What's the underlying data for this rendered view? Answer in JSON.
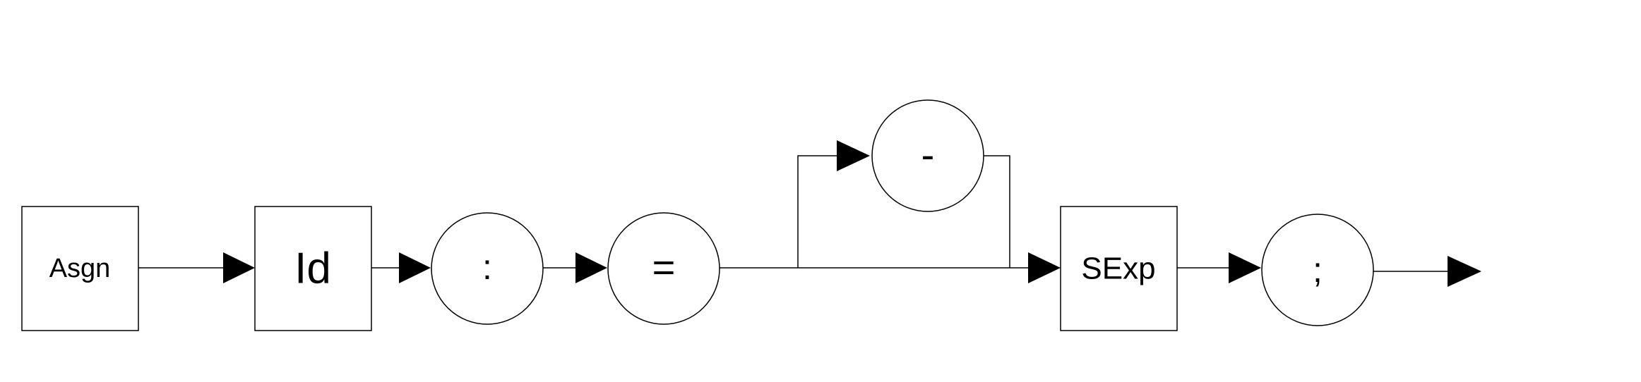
{
  "diagram": {
    "nodes": {
      "asgn": {
        "label": "Asgn",
        "shape": "box"
      },
      "id": {
        "label": "Id",
        "shape": "box"
      },
      "colon": {
        "label": ":",
        "shape": "circle"
      },
      "equals": {
        "label": "=",
        "shape": "circle"
      },
      "minus": {
        "label": "-",
        "shape": "circle"
      },
      "sexp": {
        "label": "SExp",
        "shape": "box"
      },
      "semicolon": {
        "label": ";",
        "shape": "circle"
      }
    },
    "edges": [
      {
        "from": "asgn",
        "to": "id"
      },
      {
        "from": "id",
        "to": "colon"
      },
      {
        "from": "colon",
        "to": "equals"
      },
      {
        "from": "equals",
        "to": "sexp",
        "note": "direct path"
      },
      {
        "from": "equals",
        "to": "minus",
        "note": "optional branch"
      },
      {
        "from": "minus",
        "to": "sexp"
      },
      {
        "from": "sexp",
        "to": "semicolon"
      },
      {
        "from": "semicolon",
        "to": "exit"
      }
    ],
    "colors": {
      "stroke": "#000000",
      "fill": "#ffffff",
      "arrow": "#000000"
    }
  }
}
